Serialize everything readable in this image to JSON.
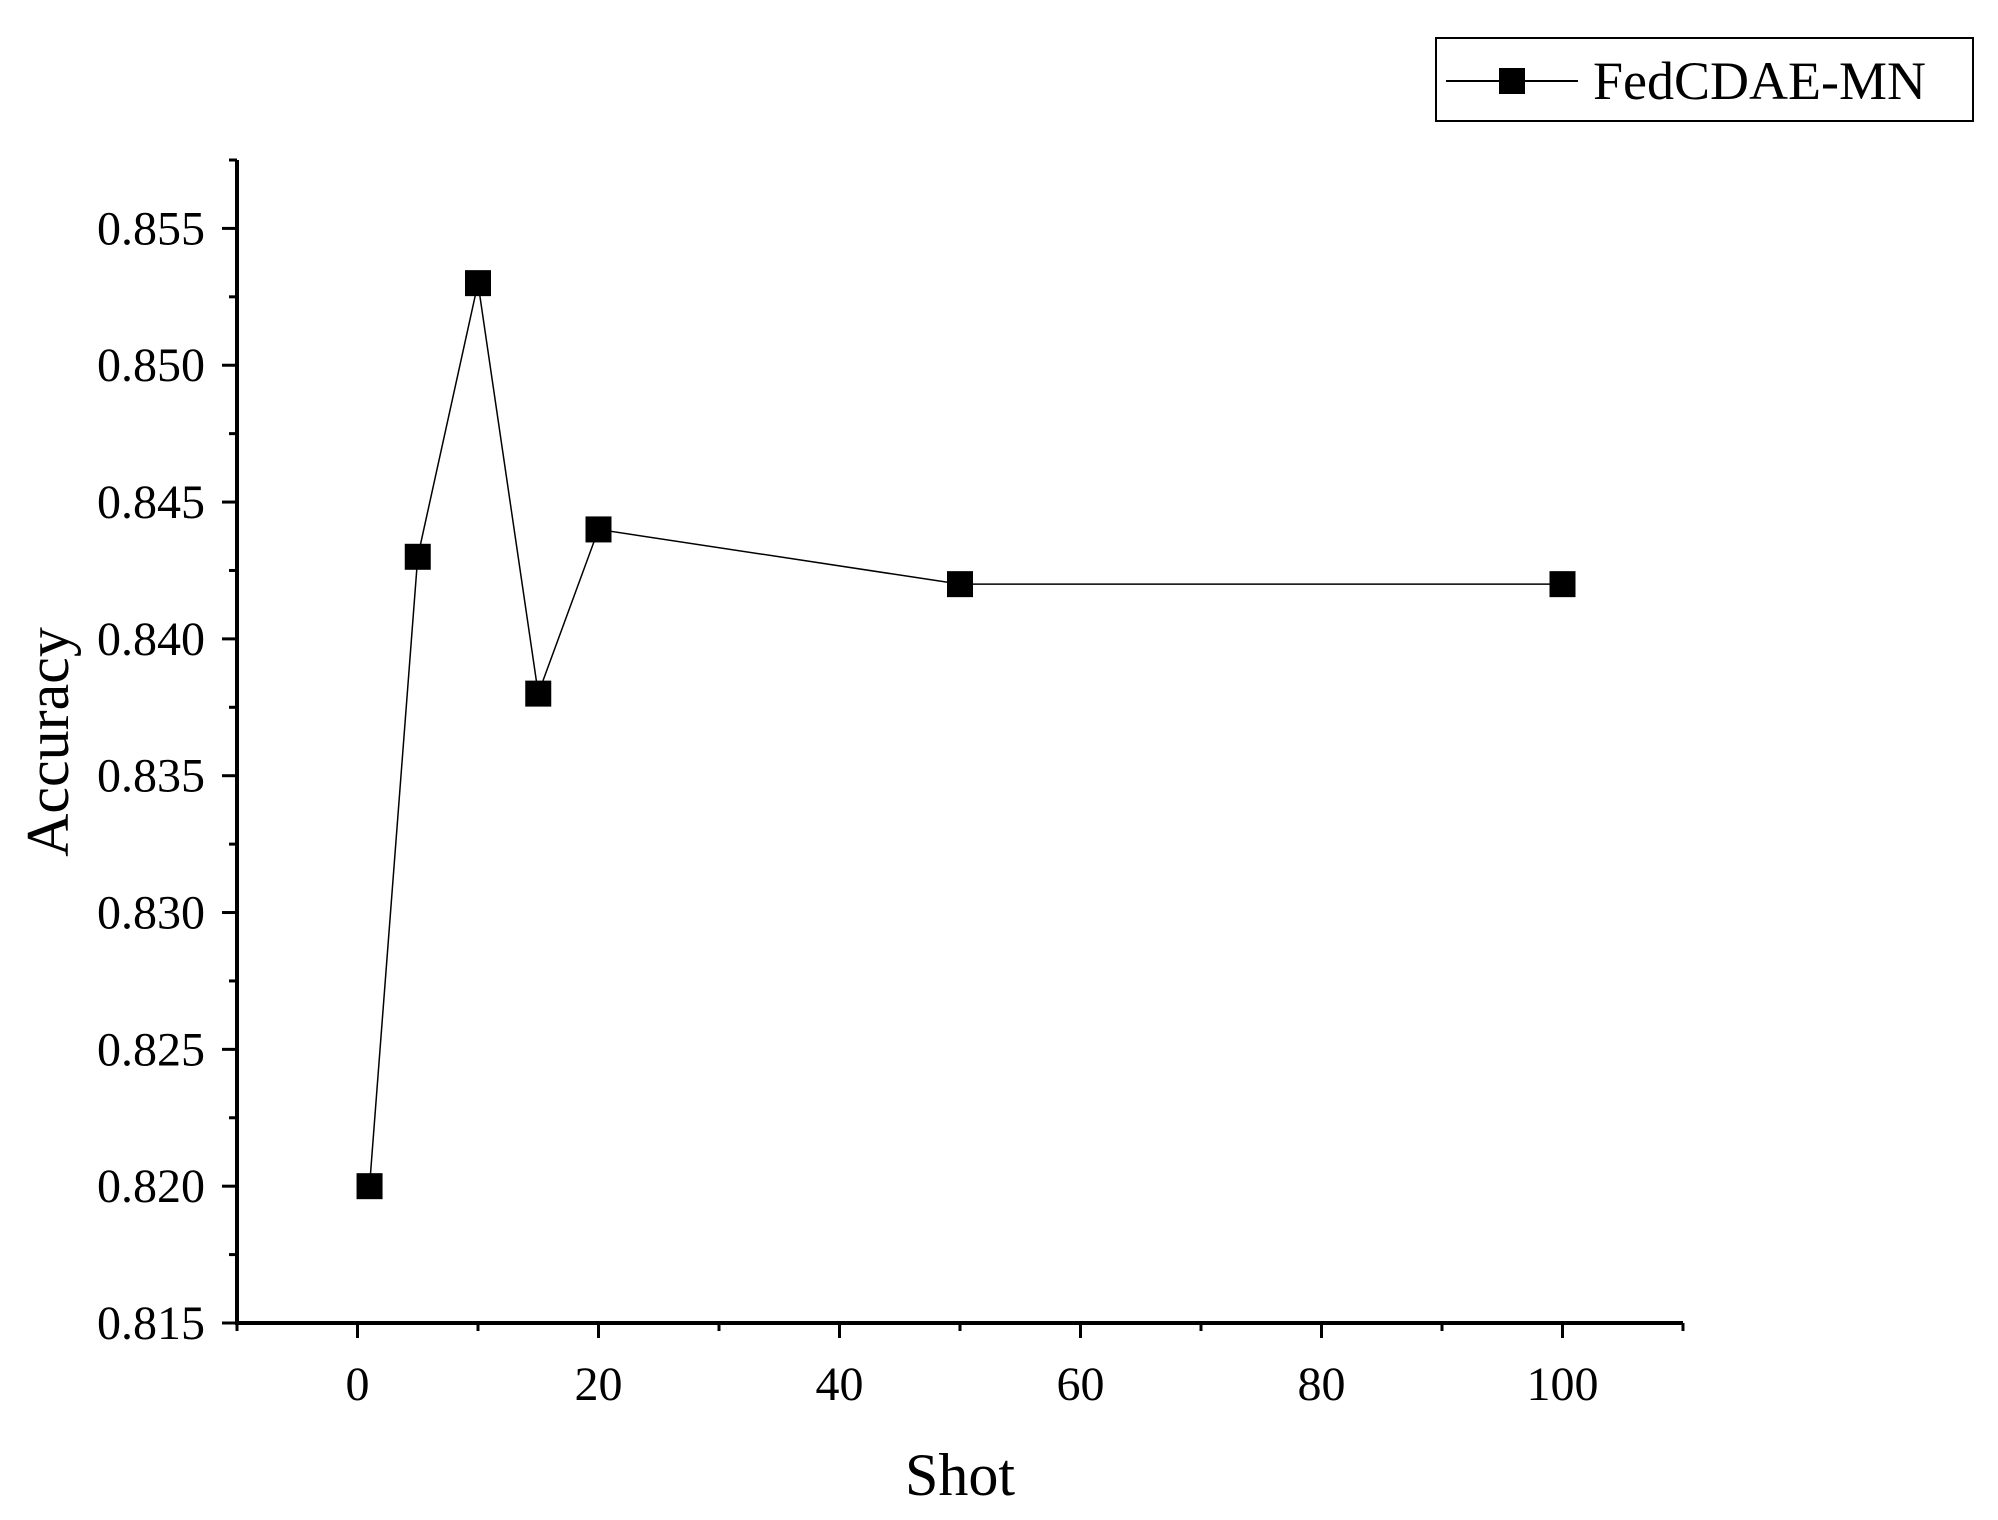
{
  "chart_data": {
    "type": "line",
    "title": "",
    "xlabel": "Shot",
    "ylabel": "Accuracy",
    "xlim": [
      -10,
      110
    ],
    "ylim": [
      0.815,
      0.8575
    ],
    "xticks": [
      0,
      20,
      40,
      60,
      80,
      100
    ],
    "xtick_labels": [
      "0",
      "20",
      "40",
      "60",
      "80",
      "100"
    ],
    "yticks": [
      0.815,
      0.82,
      0.825,
      0.83,
      0.835,
      0.84,
      0.845,
      0.85,
      0.855
    ],
    "ytick_labels": [
      "0.815",
      "0.820",
      "0.825",
      "0.830",
      "0.835",
      "0.840",
      "0.845",
      "0.850",
      "0.855"
    ],
    "grid": false,
    "legend_position": "top-right",
    "series": [
      {
        "name": "FedCDAE-MN",
        "marker": "square",
        "color": "#000000",
        "x": [
          1,
          5,
          10,
          15,
          20,
          50,
          100
        ],
        "y": [
          0.82,
          0.843,
          0.853,
          0.838,
          0.844,
          0.842,
          0.842
        ]
      }
    ]
  }
}
